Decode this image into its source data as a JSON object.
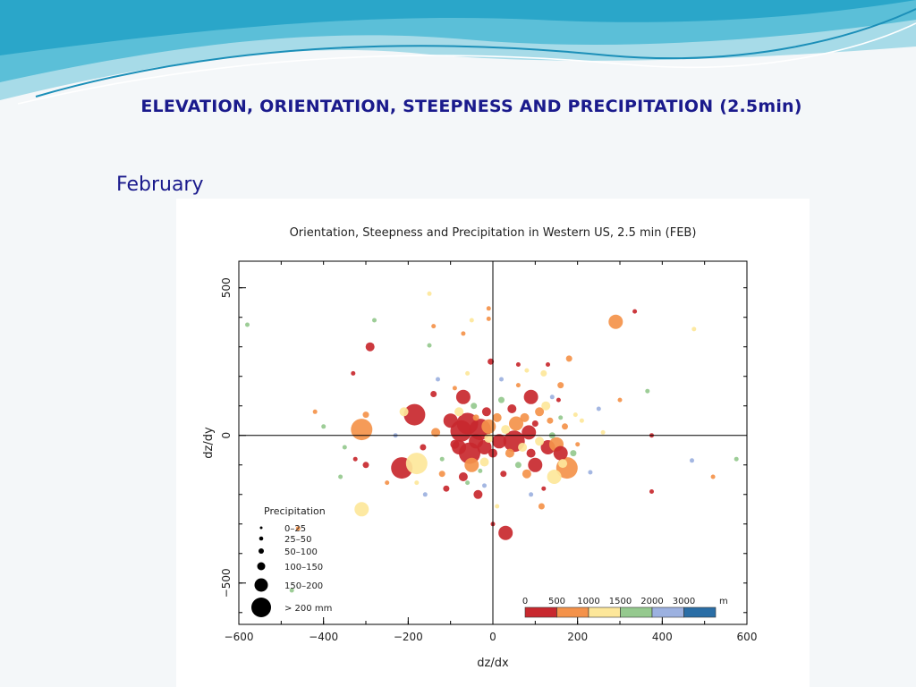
{
  "slide": {
    "title": "ELEVATION, ORIENTATION, STEEPNESS AND PRECIPITATION (2.5min)",
    "month": "February"
  },
  "chart_data": {
    "type": "scatter",
    "title": "Orientation, Steepness and Precipitation in Western US, 2.5 min (FEB)",
    "xlabel": "dz/dx",
    "ylabel": "dz/dy",
    "xlim": [
      -600,
      600
    ],
    "ylim": [
      -640,
      590
    ],
    "xticks": [
      -600,
      -400,
      -200,
      0,
      200,
      400,
      600
    ],
    "yticks": [
      -500,
      0,
      500
    ],
    "grid": false,
    "zero_lines": true,
    "size_legend": {
      "title": "Precipitation",
      "placement": "bottom-left",
      "entries": [
        "0–25",
        "25–50",
        "50–100",
        "100–150",
        "150–200",
        "> 200 mm"
      ]
    },
    "color_legend": {
      "placement": "bottom-right",
      "labels": [
        "0",
        "500",
        "1000",
        "1500",
        "2000",
        "3000",
        "m"
      ],
      "colors": [
        "#c8282e",
        "#f4924a",
        "#fde79a",
        "#95c98e",
        "#9cb1e0",
        "#2a6ea6"
      ]
    },
    "elevation_classes": [
      "0–500",
      "500–1000",
      "1000–1500",
      "1500–2000",
      "2000–3000",
      "> 3000"
    ],
    "points": [
      [
        -580,
        375,
        3,
        1
      ],
      [
        -280,
        390,
        3,
        1
      ],
      [
        -290,
        300,
        0,
        3
      ],
      [
        -150,
        480,
        2,
        1
      ],
      [
        -140,
        370,
        1,
        1
      ],
      [
        -70,
        345,
        1,
        1
      ],
      [
        -150,
        305,
        3,
        1
      ],
      [
        -50,
        390,
        2,
        1
      ],
      [
        -10,
        430,
        1,
        1
      ],
      [
        -10,
        395,
        1,
        1
      ],
      [
        290,
        385,
        1,
        4
      ],
      [
        335,
        420,
        0,
        1
      ],
      [
        475,
        360,
        2,
        1
      ],
      [
        365,
        150,
        3,
        1
      ],
      [
        375,
        0,
        0,
        1
      ],
      [
        470,
        -85,
        4,
        1
      ],
      [
        575,
        -80,
        3,
        1
      ],
      [
        520,
        -140,
        1,
        1
      ],
      [
        375,
        -190,
        0,
        1
      ],
      [
        230,
        -125,
        4,
        1
      ],
      [
        -310,
        -250,
        2,
        4
      ],
      [
        -475,
        -525,
        3,
        1
      ],
      [
        -460,
        -315,
        1,
        1
      ],
      [
        -350,
        -40,
        3,
        1
      ],
      [
        -360,
        -140,
        3,
        1
      ],
      [
        -325,
        -80,
        0,
        1
      ],
      [
        -300,
        -100,
        0,
        2
      ],
      [
        -300,
        70,
        1,
        2
      ],
      [
        -310,
        20,
        1,
        5
      ],
      [
        -210,
        80,
        2,
        3
      ],
      [
        -185,
        70,
        0,
        5
      ],
      [
        -215,
        -110,
        0,
        5
      ],
      [
        -180,
        -95,
        2,
        5
      ],
      [
        -165,
        -40,
        0,
        2
      ],
      [
        -135,
        10,
        1,
        3
      ],
      [
        -120,
        -130,
        1,
        2
      ],
      [
        -110,
        -180,
        0,
        2
      ],
      [
        -100,
        50,
        0,
        4
      ],
      [
        -90,
        -30,
        0,
        3
      ],
      [
        -80,
        80,
        2,
        3
      ],
      [
        -80,
        -40,
        0,
        4
      ],
      [
        -75,
        15,
        0,
        5
      ],
      [
        -70,
        130,
        0,
        4
      ],
      [
        -70,
        -140,
        0,
        3
      ],
      [
        -60,
        40,
        0,
        5
      ],
      [
        -55,
        -60,
        0,
        5
      ],
      [
        -50,
        -100,
        1,
        4
      ],
      [
        -45,
        100,
        3,
        2
      ],
      [
        -40,
        -20,
        0,
        4
      ],
      [
        -40,
        60,
        1,
        2
      ],
      [
        -35,
        -200,
        0,
        3
      ],
      [
        -30,
        20,
        0,
        5
      ],
      [
        -20,
        -40,
        0,
        4
      ],
      [
        -20,
        -90,
        2,
        3
      ],
      [
        -15,
        80,
        0,
        3
      ],
      [
        -10,
        30,
        1,
        4
      ],
      [
        -10,
        -10,
        2,
        3
      ],
      [
        -5,
        250,
        0,
        2
      ],
      [
        0,
        -300,
        0,
        1
      ],
      [
        0,
        -60,
        0,
        3
      ],
      [
        10,
        60,
        1,
        3
      ],
      [
        15,
        -20,
        0,
        4
      ],
      [
        20,
        120,
        3,
        2
      ],
      [
        25,
        -130,
        0,
        2
      ],
      [
        30,
        -330,
        0,
        4
      ],
      [
        30,
        20,
        2,
        3
      ],
      [
        40,
        -60,
        1,
        3
      ],
      [
        45,
        90,
        0,
        3
      ],
      [
        50,
        -20,
        0,
        5
      ],
      [
        55,
        40,
        1,
        4
      ],
      [
        60,
        -100,
        3,
        2
      ],
      [
        60,
        240,
        0,
        1
      ],
      [
        70,
        -40,
        2,
        3
      ],
      [
        75,
        60,
        1,
        3
      ],
      [
        80,
        -130,
        1,
        3
      ],
      [
        85,
        10,
        0,
        4
      ],
      [
        90,
        130,
        0,
        4
      ],
      [
        90,
        -60,
        0,
        3
      ],
      [
        100,
        40,
        0,
        2
      ],
      [
        100,
        -100,
        0,
        4
      ],
      [
        110,
        80,
        1,
        3
      ],
      [
        110,
        -20,
        2,
        3
      ],
      [
        115,
        -240,
        1,
        2
      ],
      [
        120,
        210,
        2,
        2
      ],
      [
        120,
        -180,
        0,
        1
      ],
      [
        125,
        100,
        2,
        3
      ],
      [
        130,
        -40,
        0,
        4
      ],
      [
        135,
        50,
        1,
        2
      ],
      [
        140,
        0,
        3,
        2
      ],
      [
        145,
        -140,
        2,
        4
      ],
      [
        150,
        -30,
        1,
        4
      ],
      [
        155,
        120,
        0,
        1
      ],
      [
        160,
        170,
        1,
        2
      ],
      [
        160,
        -60,
        0,
        4
      ],
      [
        165,
        -95,
        2,
        3
      ],
      [
        170,
        30,
        1,
        2
      ],
      [
        175,
        -110,
        1,
        5
      ],
      [
        180,
        260,
        1,
        2
      ],
      [
        190,
        -60,
        3,
        2
      ],
      [
        195,
        70,
        2,
        1
      ],
      [
        200,
        -30,
        1,
        1
      ],
      [
        210,
        50,
        2,
        1
      ],
      [
        80,
        220,
        2,
        1
      ],
      [
        130,
        240,
        0,
        1
      ],
      [
        -130,
        190,
        4,
        1
      ],
      [
        -140,
        140,
        0,
        2
      ],
      [
        -250,
        -160,
        1,
        1
      ],
      [
        -330,
        210,
        0,
        1
      ],
      [
        -420,
        80,
        1,
        1
      ],
      [
        -400,
        30,
        3,
        1
      ],
      [
        250,
        90,
        4,
        1
      ],
      [
        260,
        10,
        2,
        1
      ],
      [
        -20,
        -170,
        4,
        1
      ],
      [
        10,
        -240,
        2,
        1
      ],
      [
        -60,
        -160,
        3,
        1
      ],
      [
        -90,
        160,
        1,
        1
      ],
      [
        60,
        170,
        1,
        1
      ],
      [
        -160,
        -200,
        4,
        1
      ],
      [
        -230,
        0,
        4,
        1
      ],
      [
        -120,
        -80,
        3,
        1
      ],
      [
        140,
        130,
        4,
        1
      ],
      [
        90,
        -200,
        4,
        1
      ],
      [
        300,
        120,
        1,
        1
      ],
      [
        -60,
        210,
        2,
        1
      ],
      [
        20,
        190,
        4,
        1
      ],
      [
        -180,
        -160,
        2,
        1
      ],
      [
        160,
        60,
        3,
        1
      ],
      [
        -30,
        -120,
        3,
        1
      ]
    ]
  }
}
